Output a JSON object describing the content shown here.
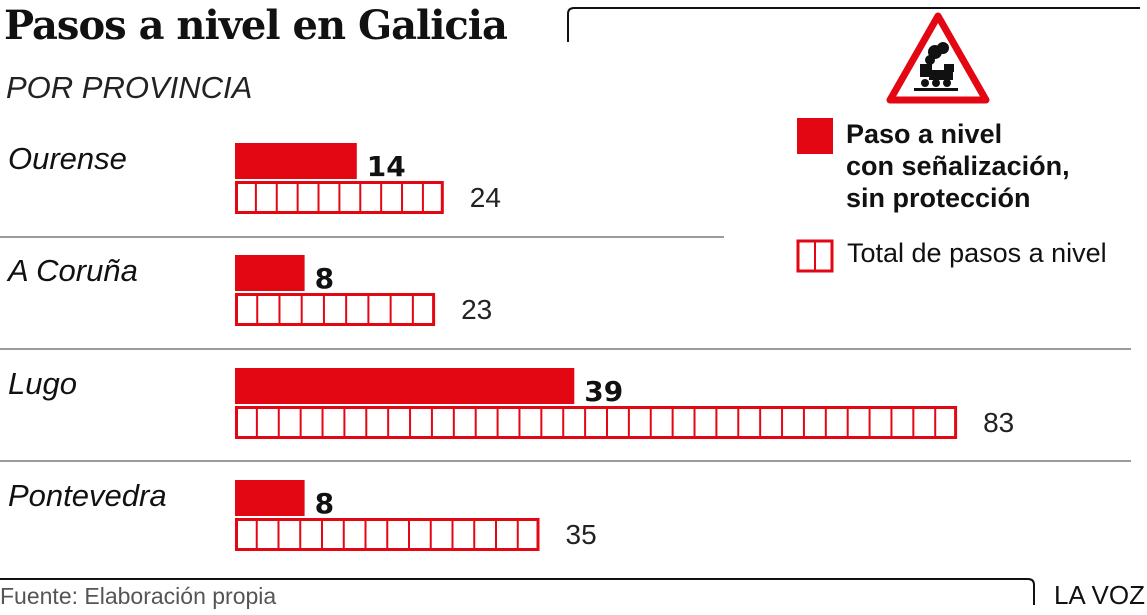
{
  "header": {
    "title": "Pasos a nivel en Galicia",
    "subtitle": "POR PROVINCIA"
  },
  "footer": {
    "source": "Fuente: Elaboración propia",
    "brand": "LA VOZ"
  },
  "legend": {
    "signalled_label": [
      "Paso a nivel",
      "con señalización,",
      "sin protección"
    ],
    "total_label": "Total de pasos a nivel",
    "sign_icon": "railway-crossing-warning-sign"
  },
  "colors": {
    "accent": "#e30613",
    "text": "#111111",
    "divider": "#7a7a7a"
  },
  "chart_data": {
    "type": "bar",
    "title": "Pasos a nivel en Galicia",
    "subtitle": "POR PROVINCIA",
    "categories": [
      "Ourense",
      "A Coruña",
      "Lugo",
      "Pontevedra"
    ],
    "series": [
      {
        "name": "Paso a nivel con señalización, sin protección",
        "values": [
          14,
          8,
          39,
          8
        ]
      },
      {
        "name": "Total de pasos a nivel",
        "values": [
          24,
          23,
          83,
          35
        ]
      }
    ],
    "source": "Fuente: Elaboración propia"
  }
}
